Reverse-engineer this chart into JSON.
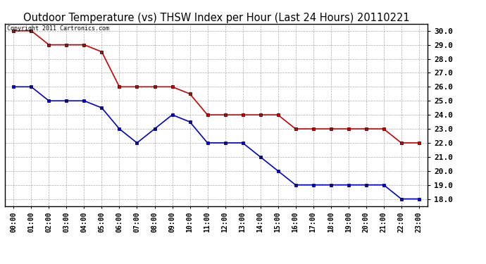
{
  "title": "Outdoor Temperature (vs) THSW Index per Hour (Last 24 Hours) 20110221",
  "copyright_text": "Copyright 2011 Cartronics.com",
  "hours": [
    "00:00",
    "01:00",
    "02:00",
    "03:00",
    "04:00",
    "05:00",
    "06:00",
    "07:00",
    "08:00",
    "09:00",
    "10:00",
    "11:00",
    "12:00",
    "13:00",
    "14:00",
    "15:00",
    "16:00",
    "17:00",
    "18:00",
    "19:00",
    "20:00",
    "21:00",
    "22:00",
    "23:00"
  ],
  "red_values": [
    30.0,
    30.0,
    29.0,
    29.0,
    29.0,
    28.5,
    26.0,
    26.0,
    26.0,
    26.0,
    25.5,
    24.0,
    24.0,
    24.0,
    24.0,
    24.0,
    23.0,
    23.0,
    23.0,
    23.0,
    23.0,
    23.0,
    22.0,
    22.0
  ],
  "blue_values": [
    26.0,
    26.0,
    25.0,
    25.0,
    25.0,
    24.5,
    23.0,
    22.0,
    23.0,
    24.0,
    23.5,
    22.0,
    22.0,
    22.0,
    21.0,
    20.0,
    19.0,
    19.0,
    19.0,
    19.0,
    19.0,
    19.0,
    18.0,
    18.0
  ],
  "red_color": "#cc0000",
  "blue_color": "#0000cc",
  "marker": "s",
  "marker_size": 2.5,
  "line_width": 1.2,
  "ylim": [
    17.5,
    30.5
  ],
  "yticks": [
    18.0,
    19.0,
    20.0,
    21.0,
    22.0,
    23.0,
    24.0,
    25.0,
    26.0,
    27.0,
    28.0,
    29.0,
    30.0
  ],
  "background_color": "#ffffff",
  "grid_color": "#aaaaaa",
  "title_fontsize": 10.5,
  "tick_fontsize": 7,
  "ytick_fontsize": 8,
  "copyright_fontsize": 6
}
